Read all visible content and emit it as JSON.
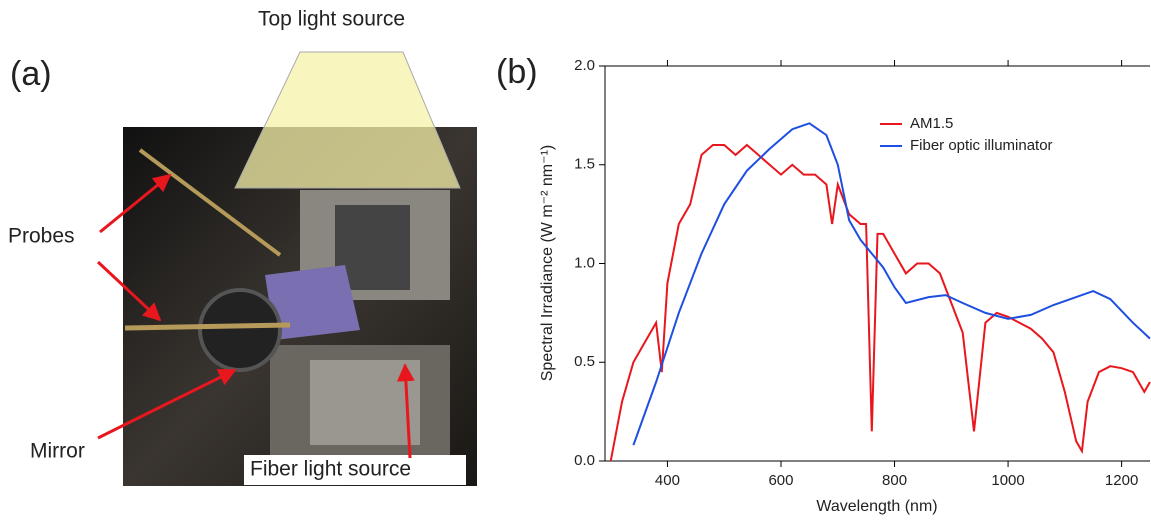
{
  "photo": {
    "panel_label": "(a)",
    "labels": [
      "Top light source",
      "Probes",
      "Mirror",
      "Fiber light source"
    ]
  },
  "chart_data": {
    "type": "line",
    "panel_label": "(b)",
    "x_label": "Wavelength (nm)",
    "y_label": "Spectral Irradiance (W m⁻² nm⁻¹)",
    "xlim": [
      290,
      1250
    ],
    "xticks": [
      400,
      600,
      800,
      1000,
      1200
    ],
    "ylim": [
      0,
      2
    ],
    "yticks": [
      {
        "value": 0,
        "label": "0.0"
      },
      {
        "value": 0.5,
        "label": "0.5"
      },
      {
        "value": 1,
        "label": "1.0"
      },
      {
        "value": 1.5,
        "label": "1.5"
      },
      {
        "value": 2,
        "label": "2.0"
      }
    ],
    "legend": "upper right",
    "series": [
      {
        "name": "AM1.5",
        "color": "#e8171d",
        "x": [
          300,
          320,
          340,
          360,
          380,
          390,
          400,
          420,
          440,
          460,
          480,
          500,
          520,
          540,
          560,
          580,
          600,
          620,
          640,
          660,
          680,
          690,
          700,
          720,
          740,
          750,
          760,
          770,
          780,
          800,
          820,
          840,
          860,
          880,
          900,
          920,
          940,
          960,
          980,
          1000,
          1020,
          1040,
          1060,
          1080,
          1100,
          1120,
          1130,
          1140,
          1160,
          1180,
          1200,
          1220,
          1240,
          1250
        ],
        "values": [
          0.0,
          0.3,
          0.5,
          0.6,
          0.7,
          0.45,
          0.9,
          1.2,
          1.3,
          1.55,
          1.6,
          1.6,
          1.55,
          1.6,
          1.55,
          1.5,
          1.45,
          1.5,
          1.45,
          1.45,
          1.4,
          1.2,
          1.4,
          1.25,
          1.2,
          1.2,
          0.15,
          1.15,
          1.15,
          1.05,
          0.95,
          1.0,
          1.0,
          0.95,
          0.8,
          0.65,
          0.15,
          0.7,
          0.75,
          0.73,
          0.7,
          0.67,
          0.62,
          0.55,
          0.35,
          0.1,
          0.05,
          0.3,
          0.45,
          0.48,
          0.47,
          0.45,
          0.35,
          0.4
        ]
      },
      {
        "name": "Fiber optic illuminator",
        "color": "#1f4fe0",
        "x": [
          340,
          380,
          420,
          460,
          500,
          540,
          580,
          620,
          650,
          680,
          700,
          720,
          740,
          760,
          780,
          800,
          820,
          860,
          890,
          920,
          960,
          1000,
          1040,
          1080,
          1120,
          1150,
          1180,
          1220,
          1250
        ],
        "values": [
          0.08,
          0.4,
          0.75,
          1.05,
          1.3,
          1.47,
          1.58,
          1.68,
          1.71,
          1.65,
          1.5,
          1.22,
          1.12,
          1.05,
          0.98,
          0.88,
          0.8,
          0.83,
          0.84,
          0.8,
          0.75,
          0.72,
          0.74,
          0.79,
          0.83,
          0.86,
          0.82,
          0.7,
          0.62
        ]
      }
    ]
  }
}
